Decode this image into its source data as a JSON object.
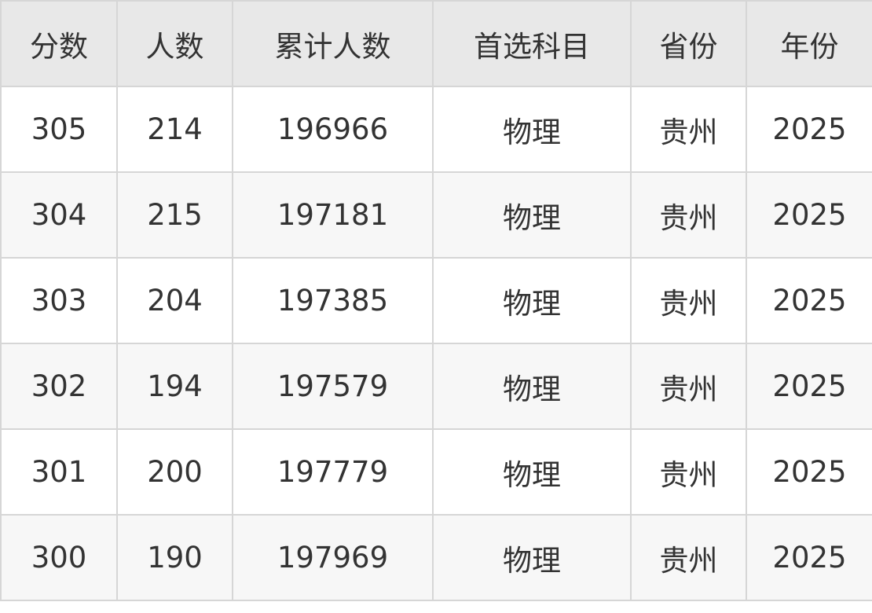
{
  "table": {
    "headers": [
      "分数",
      "人数",
      "累计人数",
      "首选科目",
      "省份",
      "年份"
    ],
    "rows": [
      [
        "305",
        "214",
        "196966",
        "物理",
        "贵州",
        "2025"
      ],
      [
        "304",
        "215",
        "197181",
        "物理",
        "贵州",
        "2025"
      ],
      [
        "303",
        "204",
        "197385",
        "物理",
        "贵州",
        "2025"
      ],
      [
        "302",
        "194",
        "197579",
        "物理",
        "贵州",
        "2025"
      ],
      [
        "301",
        "200",
        "197779",
        "物理",
        "贵州",
        "2025"
      ],
      [
        "300",
        "190",
        "197969",
        "物理",
        "贵州",
        "2025"
      ]
    ]
  }
}
